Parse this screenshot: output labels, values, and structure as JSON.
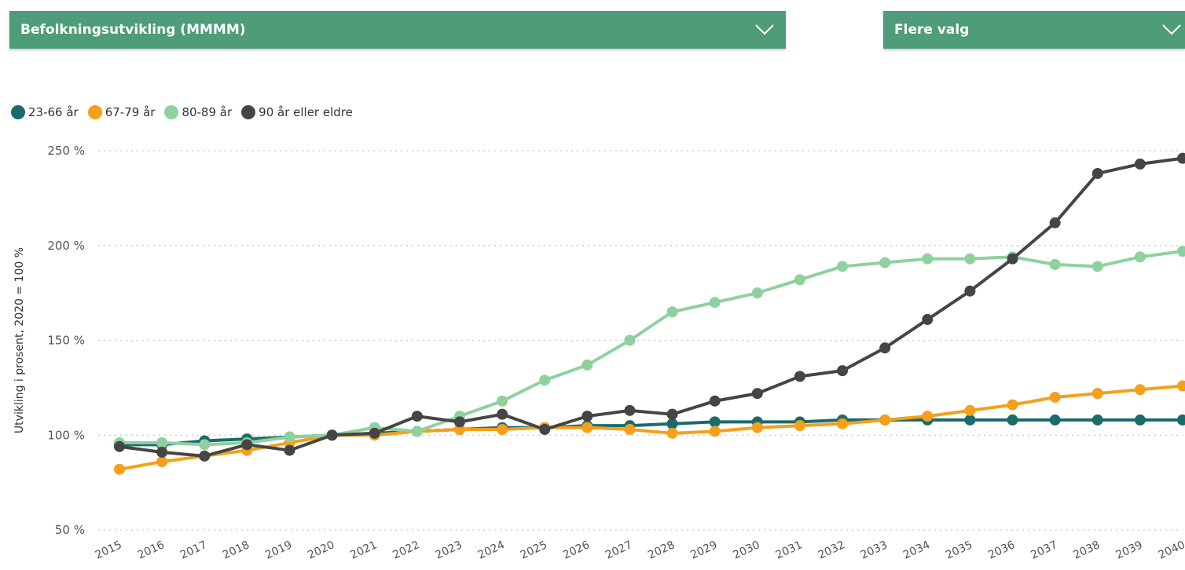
{
  "filters": {
    "main_label": "Befolkningsutvikling (MMMM)",
    "options_label": "Flere valg"
  },
  "icons": {
    "dropdown": "chevron-down-icon"
  },
  "chart_data": {
    "type": "line",
    "ylabel": "Utvikling i prosent, 2020 = 100 %",
    "ylim": [
      50,
      250
    ],
    "yticks": [
      50,
      100,
      150,
      200,
      250
    ],
    "ytick_labels": [
      "50 %",
      "100 %",
      "150 %",
      "200 %",
      "250 %"
    ],
    "grid": true,
    "legend_position": "top-left",
    "x": [
      "2015",
      "2016",
      "2017",
      "2018",
      "2019",
      "2020",
      "2021",
      "2022",
      "2023",
      "2024",
      "2025",
      "2026",
      "2027",
      "2028",
      "2029",
      "2030",
      "2031",
      "2032",
      "2033",
      "2034",
      "2035",
      "2036",
      "2037",
      "2038",
      "2039",
      "2040"
    ],
    "series": [
      {
        "name": "23-66 år",
        "color": "#1a6b6b",
        "values": [
          95,
          95,
          97,
          98,
          99,
          100,
          101,
          102,
          103,
          104,
          104,
          105,
          105,
          106,
          107,
          107,
          107,
          108,
          108,
          108,
          108,
          108,
          108,
          108,
          108,
          108
        ]
      },
      {
        "name": "67-79 år",
        "color": "#f5a01a",
        "values": [
          82,
          86,
          89,
          92,
          96,
          100,
          100,
          102,
          103,
          103,
          104,
          104,
          103,
          101,
          102,
          104,
          105,
          106,
          108,
          110,
          113,
          116,
          120,
          122,
          124,
          126
        ]
      },
      {
        "name": "80-89 år",
        "color": "#8fd19e",
        "values": [
          96,
          96,
          95,
          96,
          99,
          100,
          104,
          102,
          110,
          118,
          129,
          137,
          150,
          165,
          170,
          175,
          182,
          189,
          191,
          193,
          193,
          194,
          190,
          189,
          194,
          197
        ]
      },
      {
        "name": "90 år eller eldre",
        "color": "#454545",
        "values": [
          94,
          91,
          89,
          95,
          92,
          100,
          101,
          110,
          107,
          111,
          103,
          110,
          113,
          111,
          118,
          122,
          131,
          134,
          146,
          161,
          176,
          193,
          212,
          238,
          243,
          246
        ]
      }
    ]
  }
}
